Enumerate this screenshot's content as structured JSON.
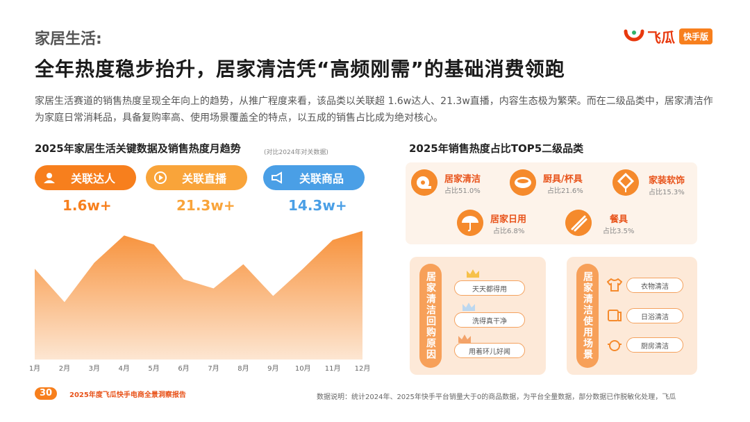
{
  "header": {
    "section": "家居生活:",
    "title": "全年热度稳步抬升，居家清洁凭“高频刚需”的基础消费领跑",
    "brand": "飞瓜",
    "brand_badge": "快手版"
  },
  "intro": "家居生活赛道的销售热度呈现全年向上的趋势，从推广程度来看，该品类以关联超 1.6w达人、21.3w直播，内容生态极为繁荣。而在二级品类中，居家清洁作为家庭日常消耗品，具备复购率高、使用场景覆盖全的特点，以五成的销售占比成为绝对核心。",
  "left": {
    "title": "2025年家居生活关键数据及销售热度月趋势",
    "note": "(对比2024年对关数据)",
    "metrics": [
      {
        "label": "关联达人",
        "value": "1.6w+",
        "icon": "user-icon",
        "color": "#f77f1d"
      },
      {
        "label": "关联直播",
        "value": "21.3w+",
        "icon": "play-icon",
        "color": "#f9a43a"
      },
      {
        "label": "关联商品",
        "value": "14.3w+",
        "icon": "megaphone-icon",
        "color": "#4a9fe6"
      }
    ]
  },
  "chart_data": {
    "type": "area",
    "categories": [
      "1月",
      "2月",
      "3月",
      "4月",
      "5月",
      "6月",
      "7月",
      "8月",
      "9月",
      "10月",
      "11月",
      "12月"
    ],
    "series": [
      {
        "values": [
          60,
          38,
          64,
          82,
          76,
          53,
          47,
          63,
          42,
          60,
          79,
          85
        ]
      }
    ],
    "ylim": [
      0,
      100
    ],
    "colors": {
      "top": "#f7913a",
      "bottom": "#fde6d2"
    }
  },
  "right": {
    "title": "2025年销售热度占比TOP5二级品类",
    "categories": [
      {
        "name": "居家清洁",
        "share": "占比51.0%",
        "icon": "tissue-roll-icon"
      },
      {
        "name": "厨具/杯具",
        "share": "占比21.6%",
        "icon": "bowl-icon"
      },
      {
        "name": "家装软饰",
        "share": "占比15.3%",
        "icon": "knot-icon"
      },
      {
        "name": "居家日用",
        "share": "占比6.8%",
        "icon": "umbrella-icon"
      },
      {
        "name": "餐具",
        "share": "占比3.5%",
        "icon": "chopsticks-icon"
      }
    ],
    "panels": [
      {
        "title": "居家清洁回购原因",
        "tags": [
          "天天都得用",
          "洗得真干净",
          "用着环儿好闻"
        ]
      },
      {
        "title": "居家清洁使用场景",
        "tags": [
          "衣物清洁",
          "日浴清洁",
          "厨房清洁"
        ]
      }
    ]
  },
  "footer": {
    "page": "30",
    "report": "2025年度飞瓜快手电商全景洞察报告",
    "note": "数据说明：统计2024年、2025年快手平台销量大于0的商品数据，为平台全量数据，部分数据已作脱敏化处理，飞瓜"
  }
}
